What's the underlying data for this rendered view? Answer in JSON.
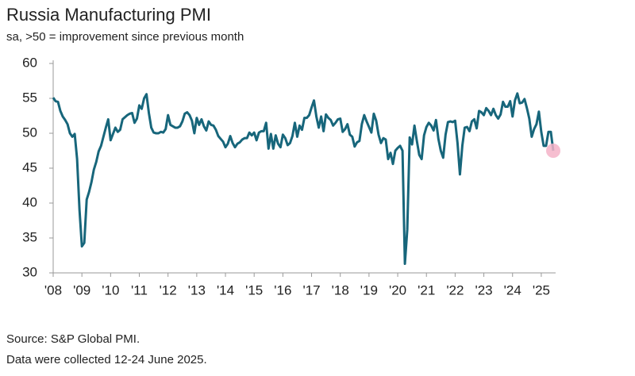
{
  "chart_data": {
    "type": "line",
    "title": "Russia Manufacturing PMI",
    "subtitle": "sa, >50 = improvement since previous month",
    "source": "Source: S&P Global PMI.",
    "note": "Data were collected 12-24 June 2025.",
    "xlim": [
      2008,
      2025.5
    ],
    "ylim": [
      30,
      60
    ],
    "yticks": [
      30,
      35,
      40,
      45,
      50,
      55,
      60
    ],
    "xticks": [
      {
        "value": 2008,
        "label": "'08"
      },
      {
        "value": 2009,
        "label": "'09"
      },
      {
        "value": 2010,
        "label": "'10"
      },
      {
        "value": 2011,
        "label": "'11"
      },
      {
        "value": 2012,
        "label": "'12"
      },
      {
        "value": 2013,
        "label": "'13"
      },
      {
        "value": 2014,
        "label": "'14"
      },
      {
        "value": 2015,
        "label": "'15"
      },
      {
        "value": 2016,
        "label": "'16"
      },
      {
        "value": 2017,
        "label": "'17"
      },
      {
        "value": 2018,
        "label": "'18"
      },
      {
        "value": 2019,
        "label": "'19"
      },
      {
        "value": 2020,
        "label": "'20"
      },
      {
        "value": 2021,
        "label": "'21"
      },
      {
        "value": 2022,
        "label": "'22"
      },
      {
        "value": 2023,
        "label": "'23"
      },
      {
        "value": 2024,
        "label": "'24"
      },
      {
        "value": 2025,
        "label": "'25"
      }
    ],
    "highlight_color": "#f4b3c8",
    "x": [
      2008,
      2008.083,
      2008.167,
      2008.25,
      2008.333,
      2008.417,
      2008.5,
      2008.583,
      2008.667,
      2008.75,
      2008.833,
      2008.917,
      2009,
      2009.083,
      2009.167,
      2009.25,
      2009.333,
      2009.417,
      2009.5,
      2009.583,
      2009.667,
      2009.75,
      2009.833,
      2009.917,
      2010,
      2010.083,
      2010.167,
      2010.25,
      2010.333,
      2010.417,
      2010.5,
      2010.583,
      2010.667,
      2010.75,
      2010.833,
      2010.917,
      2011,
      2011.083,
      2011.167,
      2011.25,
      2011.333,
      2011.417,
      2011.5,
      2011.583,
      2011.667,
      2011.75,
      2011.833,
      2011.917,
      2012,
      2012.083,
      2012.167,
      2012.25,
      2012.333,
      2012.417,
      2012.5,
      2012.583,
      2012.667,
      2012.75,
      2012.833,
      2012.917,
      2013,
      2013.083,
      2013.167,
      2013.25,
      2013.333,
      2013.417,
      2013.5,
      2013.583,
      2013.667,
      2013.75,
      2013.833,
      2013.917,
      2014,
      2014.083,
      2014.167,
      2014.25,
      2014.333,
      2014.417,
      2014.5,
      2014.583,
      2014.667,
      2014.75,
      2014.833,
      2014.917,
      2015,
      2015.083,
      2015.167,
      2015.25,
      2015.333,
      2015.417,
      2015.5,
      2015.583,
      2015.667,
      2015.75,
      2015.833,
      2015.917,
      2016,
      2016.083,
      2016.167,
      2016.25,
      2016.333,
      2016.417,
      2016.5,
      2016.583,
      2016.667,
      2016.75,
      2016.833,
      2016.917,
      2017,
      2017.083,
      2017.167,
      2017.25,
      2017.333,
      2017.417,
      2017.5,
      2017.583,
      2017.667,
      2017.75,
      2017.833,
      2017.917,
      2018,
      2018.083,
      2018.167,
      2018.25,
      2018.333,
      2018.417,
      2018.5,
      2018.583,
      2018.667,
      2018.75,
      2018.833,
      2018.917,
      2019,
      2019.083,
      2019.167,
      2019.25,
      2019.333,
      2019.417,
      2019.5,
      2019.583,
      2019.667,
      2019.75,
      2019.833,
      2019.917,
      2020,
      2020.083,
      2020.167,
      2020.25,
      2020.333,
      2020.417,
      2020.5,
      2020.583,
      2020.667,
      2020.75,
      2020.833,
      2020.917,
      2021,
      2021.083,
      2021.167,
      2021.25,
      2021.333,
      2021.417,
      2021.5,
      2021.583,
      2021.667,
      2021.75,
      2021.833,
      2021.917,
      2022,
      2022.083,
      2022.167,
      2022.25,
      2022.333,
      2022.417,
      2022.5,
      2022.583,
      2022.667,
      2022.75,
      2022.833,
      2022.917,
      2023,
      2023.083,
      2023.167,
      2023.25,
      2023.333,
      2023.417,
      2023.5,
      2023.583,
      2023.667,
      2023.75,
      2023.833,
      2023.917,
      2024,
      2024.083,
      2024.167,
      2024.25,
      2024.333,
      2024.417,
      2024.5,
      2024.583,
      2024.667,
      2024.75,
      2024.833,
      2024.917,
      2025,
      2025.083,
      2025.167,
      2025.25,
      2025.333,
      2025.417
    ],
    "series": [
      {
        "name": "Russia Manufacturing PMI",
        "color": "#17667b",
        "values": [
          55.1,
          54.6,
          54.5,
          53.2,
          52.4,
          51.9,
          51.3,
          50.0,
          49.5,
          49.9,
          46.3,
          39.0,
          33.8,
          34.3,
          40.5,
          41.6,
          43.0,
          44.8,
          45.9,
          47.4,
          48.2,
          49.5,
          50.8,
          52.0,
          49.0,
          49.9,
          50.8,
          50.2,
          50.5,
          52.0,
          52.3,
          52.6,
          52.8,
          52.9,
          51.5,
          52.1,
          54.0,
          53.5,
          55.0,
          55.6,
          52.9,
          50.8,
          50.1,
          50.0,
          50.0,
          50.2,
          50.1,
          50.6,
          52.6,
          51.2,
          51.0,
          50.8,
          50.8,
          51.0,
          51.7,
          52.8,
          53.0,
          52.6,
          51.8,
          50.0,
          52.2,
          51.2,
          52.0,
          51.0,
          50.4,
          51.7,
          51.2,
          51.1,
          50.5,
          49.6,
          49.2,
          48.8,
          48.0,
          48.5,
          49.6,
          48.6,
          48.0,
          48.5,
          48.7,
          49.1,
          49.3,
          49.3,
          50.1,
          49.7,
          50.1,
          49.0,
          50.1,
          50.3,
          50.3,
          51.5,
          47.8,
          49.9,
          47.8,
          49.7,
          48.5,
          48.0,
          49.8,
          49.3,
          48.3,
          48.6,
          49.6,
          51.5,
          49.5,
          51.1,
          50.5,
          52.2,
          52.2,
          52.6,
          53.7,
          54.7,
          52.4,
          50.8,
          52.4,
          50.3,
          52.7,
          52.2,
          51.9,
          51.1,
          51.5,
          52.0,
          52.1,
          50.2,
          50.6,
          51.3,
          49.8,
          49.5,
          48.1,
          48.7,
          48.9,
          51.3,
          52.6,
          51.7,
          50.9,
          50.1,
          52.8,
          51.8,
          49.8,
          48.6,
          49.3,
          49.1,
          46.3,
          47.2,
          45.6,
          47.5,
          47.9,
          48.2,
          47.5,
          31.3,
          36.2,
          49.4,
          48.4,
          51.1,
          48.9,
          46.9,
          46.3,
          49.7,
          50.9,
          51.5,
          51.1,
          50.4,
          51.9,
          49.2,
          47.5,
          46.5,
          49.8,
          51.6,
          51.7,
          51.6,
          51.8,
          48.6,
          44.1,
          48.2,
          50.8,
          50.9,
          50.3,
          51.7,
          52.0,
          50.7,
          53.2,
          53.0,
          52.6,
          53.6,
          53.2,
          52.6,
          53.5,
          52.6,
          52.1,
          52.7,
          54.5,
          53.8,
          53.8,
          54.6,
          52.4,
          54.7,
          55.7,
          54.3,
          54.4,
          54.9,
          53.6,
          52.1,
          49.5,
          50.6,
          51.3,
          53.1,
          50.2,
          48.2,
          48.2,
          50.2,
          50.2,
          47.5
        ]
      }
    ]
  }
}
